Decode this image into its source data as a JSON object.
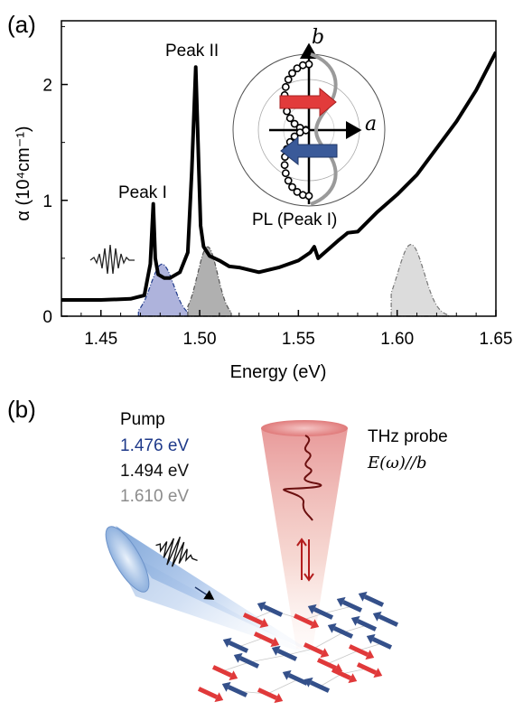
{
  "panel_a": {
    "label": "(a)",
    "peak_labels": [
      "Peak I",
      "Peak II"
    ],
    "inset": {
      "axis_a": "a",
      "axis_b": "b",
      "caption": "PL (Peak I)"
    }
  },
  "panel_b": {
    "label": "(b)",
    "pump_title": "Pump",
    "pump_energies": [
      {
        "text": "1.476 eV",
        "color": "#1f3a8a"
      },
      {
        "text": "1.494 eV",
        "color": "#111111"
      },
      {
        "text": "1.610 eV",
        "color": "#8c8c8c"
      }
    ],
    "probe_title": "THz probe",
    "probe_field": "E(ω)//b"
  },
  "chart_data": {
    "type": "line",
    "xlabel": "Energy (eV)",
    "ylabel": "α (10⁴cm⁻¹)",
    "xlim": [
      1.43,
      1.65
    ],
    "ylim": [
      0,
      2.55
    ],
    "xticks": [
      1.45,
      1.5,
      1.55,
      1.6,
      1.65
    ],
    "yticks": [
      0,
      1,
      2
    ],
    "grid": false,
    "series": [
      {
        "x": [
          1.43,
          1.45,
          1.465,
          1.472,
          1.475,
          1.4765,
          1.4775,
          1.479,
          1.482,
          1.485,
          1.49,
          1.494,
          1.496,
          1.498,
          1.4995,
          1.5005,
          1.502,
          1.505,
          1.51,
          1.515,
          1.52,
          1.53,
          1.54,
          1.55,
          1.556,
          1.558,
          1.56,
          1.57,
          1.575,
          1.58,
          1.59,
          1.6,
          1.61,
          1.62,
          1.63,
          1.64,
          1.65
        ],
        "y": [
          0.14,
          0.14,
          0.15,
          0.18,
          0.45,
          0.97,
          0.5,
          0.36,
          0.33,
          0.33,
          0.38,
          0.55,
          1.25,
          2.15,
          1.3,
          0.78,
          0.6,
          0.52,
          0.48,
          0.43,
          0.42,
          0.38,
          0.42,
          0.48,
          0.55,
          0.6,
          0.5,
          0.65,
          0.72,
          0.73,
          0.9,
          1.05,
          1.22,
          1.45,
          1.68,
          1.95,
          2.28
        ],
        "color": "#000000"
      }
    ],
    "pump_spectra": [
      {
        "center": 1.481,
        "peak": 0.45,
        "x_start": 1.469,
        "x_end": 1.494,
        "color": "#1f3a8a",
        "fill": "#aeb3dc"
      },
      {
        "center": 1.504,
        "peak": 0.6,
        "x_start": 1.494,
        "x_end": 1.516,
        "color": "#555555",
        "fill": "#b0b0b0"
      },
      {
        "center": 1.607,
        "peak": 0.62,
        "x_start": 1.597,
        "x_end": 1.626,
        "color": "#777777",
        "fill": "#dcdcdc"
      }
    ]
  }
}
